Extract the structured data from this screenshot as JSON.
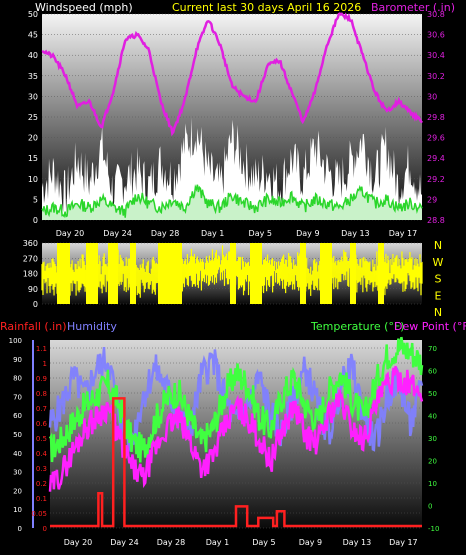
{
  "colors": {
    "background": "#000000",
    "axis_text": "#ffffff",
    "wind_fill": "#ffffff",
    "wind_avg": "#2bd62b",
    "barometer": "#e020e0",
    "direction": "#ffff00",
    "rain": "#ff2020",
    "humidity": "#8080ff",
    "temperature": "#40ff40",
    "dew_point": "#ff20ff",
    "title": "#ffff00"
  },
  "header": {
    "windspeed_label": "Windspeed (mph)",
    "title": "Current last 30 days April 16 2026",
    "barometer_label": "Barometer (.in)"
  },
  "dates": [
    "Day 20",
    "Day 24",
    "Day 28",
    "Day 1",
    "Day 5",
    "Day 9",
    "Day 13",
    "Day 17"
  ],
  "panel3_labels": {
    "rainfall": "Rainfall (.in)",
    "humidity": "Humidity",
    "temperature": "Temperature (°F)",
    "dew_point": "Dew Point (°F)"
  },
  "chart_data": [
    {
      "type": "area",
      "x": [
        "Day 20",
        "Day 24",
        "Day 28",
        "Day 1",
        "Day 5",
        "Day 9",
        "Day 13",
        "Day 17"
      ],
      "y_left_ticks": [
        "0",
        "5",
        "10",
        "15",
        "20",
        "25",
        "30",
        "35",
        "40",
        "45",
        "50"
      ],
      "y_right_ticks": [
        "28.8",
        "29",
        "29.2",
        "29.4",
        "29.6",
        "29.8",
        "30",
        "30.2",
        "30.4",
        "30.6",
        "30.8"
      ],
      "ylim_left": [
        0,
        50
      ],
      "ylim_right": [
        28.8,
        30.8
      ],
      "barometer_keypoints": [
        30.45,
        30.38,
        30.2,
        29.9,
        29.95,
        29.7,
        30.05,
        30.55,
        30.6,
        30.45,
        29.95,
        29.65,
        29.95,
        30.45,
        30.75,
        30.5,
        30.1,
        30.0,
        29.95,
        30.3,
        30.35,
        30.05,
        29.75,
        30.05,
        30.5,
        30.8,
        30.75,
        30.4,
        30.05,
        29.85,
        29.95,
        29.85,
        29.75
      ],
      "wind_avg_keypoints": [
        2,
        3,
        2,
        4,
        3,
        5,
        3,
        2,
        6,
        4,
        3,
        5,
        3,
        8,
        4,
        3,
        6,
        4,
        3,
        5,
        4,
        6,
        3,
        5,
        4,
        3,
        5,
        7,
        4,
        5,
        3,
        4,
        3
      ],
      "wind_gust_keypoints": [
        8,
        12,
        6,
        15,
        9,
        18,
        7,
        10,
        12,
        8,
        14,
        10,
        18,
        22,
        12,
        8,
        20,
        14,
        10,
        12,
        8,
        15,
        10,
        18,
        12,
        9,
        14,
        20,
        10,
        18,
        8,
        14,
        6
      ]
    },
    {
      "type": "line",
      "x": [
        "Day 20",
        "Day 24",
        "Day 28",
        "Day 1",
        "Day 5",
        "Day 9",
        "Day 13",
        "Day 17"
      ],
      "y_left_ticks": [
        "0",
        "90",
        "180",
        "270",
        "360"
      ],
      "y_right_ticks": [
        "N",
        "W",
        "S",
        "E",
        "N"
      ],
      "ylim": [
        0,
        360
      ],
      "direction_keypoints": [
        170,
        160,
        150,
        180,
        170,
        160,
        200,
        180,
        150,
        160,
        170,
        180,
        210,
        200,
        190,
        220,
        200,
        180,
        170,
        190,
        200,
        180,
        170,
        160,
        190,
        200,
        210,
        190,
        180,
        170,
        200,
        190,
        180
      ]
    },
    {
      "type": "line",
      "x": [
        "Day 20",
        "Day 24",
        "Day 28",
        "Day 1",
        "Day 5",
        "Day 9",
        "Day 13",
        "Day 17"
      ],
      "y_left_outer_ticks": [
        "0",
        "10",
        "20",
        "30",
        "40",
        "50",
        "60",
        "70",
        "80",
        "90",
        "100"
      ],
      "y_left_inner_ticks": [
        "0",
        "0.05",
        "0.1",
        "0.2",
        "0.3",
        "0.4",
        "0.5",
        "0.6",
        "0.7",
        "0.8",
        "0.9",
        "1",
        "1.1"
      ],
      "y_right_ticks": [
        "-10",
        "0",
        "10",
        "20",
        "30",
        "40",
        "50",
        "60",
        "70"
      ],
      "ylim_humidity": [
        0,
        100
      ],
      "ylim_rain": [
        0,
        1.1
      ],
      "ylim_temp": [
        -10,
        75
      ],
      "humidity_keypoints": [
        55,
        65,
        80,
        70,
        85,
        90,
        60,
        45,
        70,
        85,
        75,
        60,
        50,
        80,
        90,
        70,
        55,
        65,
        80,
        60,
        50,
        70,
        85,
        65,
        50,
        75,
        85,
        60,
        45,
        70,
        80,
        55,
        75
      ],
      "temperature_keypoints": [
        25,
        30,
        38,
        45,
        50,
        55,
        45,
        30,
        25,
        38,
        48,
        52,
        40,
        28,
        35,
        50,
        60,
        55,
        40,
        35,
        50,
        58,
        45,
        38,
        52,
        60,
        48,
        40,
        55,
        68,
        72,
        70,
        65
      ],
      "dew_point_keypoints": [
        8,
        15,
        25,
        35,
        40,
        45,
        30,
        18,
        12,
        25,
        35,
        40,
        30,
        18,
        22,
        35,
        45,
        40,
        30,
        20,
        35,
        45,
        32,
        28,
        42,
        48,
        35,
        30,
        45,
        55,
        58,
        55,
        50
      ],
      "rain_events": [
        {
          "day": "Day 22",
          "value": 0.2
        },
        {
          "day": "Day 23",
          "value": 0.78
        },
        {
          "day": "Day 2",
          "value": 0.12
        },
        {
          "day": "Day 4",
          "value": 0.05
        },
        {
          "day": "Day 6",
          "value": 0.09
        }
      ]
    }
  ]
}
